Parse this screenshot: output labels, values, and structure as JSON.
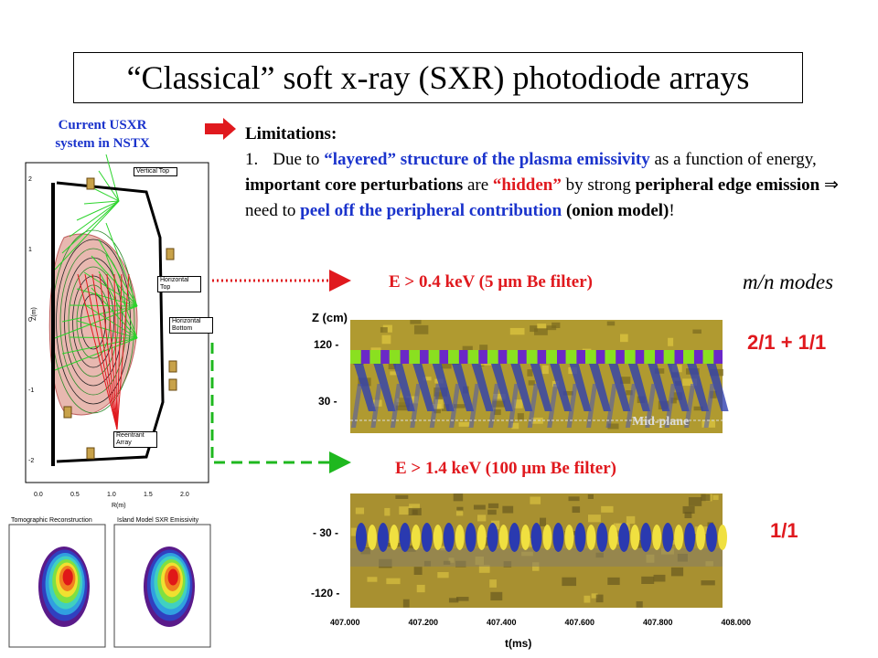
{
  "title": "“Classical” soft x-ray (SXR) photodiode arrays",
  "diagram": {
    "caption": [
      "Current USXR",
      "system in NSTX"
    ],
    "labels": [
      "Vertical Top",
      "Horizontal Top",
      "Horizontal Bottom",
      "Reentrant Array"
    ],
    "y_axis": "Z(m)",
    "x_axis": "R(m)",
    "yticks": [
      "2",
      "1",
      "0",
      "-1",
      "-2"
    ],
    "xticks": [
      "0.0",
      "0.5",
      "1.0",
      "1.5",
      "2.0"
    ],
    "insets": [
      "Tomographic Reconstruction",
      "Island Model SXR Emissivity"
    ]
  },
  "limitations": {
    "heading": "Limitations:",
    "number": "1.",
    "segments": [
      "Due to ",
      "“layered” structure of the plasma emissivity",
      " as a function of energy, ",
      "important core perturbations",
      " are ",
      "“hidden”",
      " by strong ",
      "peripheral edge emission",
      " ⇒ need to ",
      "peel off the peripheral contribution",
      " (onion model)",
      "!"
    ]
  },
  "modes_heading": "m/n modes",
  "z_label": "Z (cm)",
  "panels": [
    {
      "filter": "E > 0.4 keV (5 µm Be filter)",
      "ticks": [
        "120 -",
        "30  -"
      ],
      "modes": "2/1  + 1/1",
      "marker": "Mid-plane"
    },
    {
      "filter": "E > 1.4 keV (100 µm Be filter)",
      "ticks": [
        "- 30 -",
        "-120 -"
      ],
      "modes": "1/1"
    }
  ],
  "time_ticks": [
    "407.000",
    "407.200",
    "407.400",
    "407.600",
    "407.800",
    "408.000"
  ],
  "time_label": "t(ms)"
}
